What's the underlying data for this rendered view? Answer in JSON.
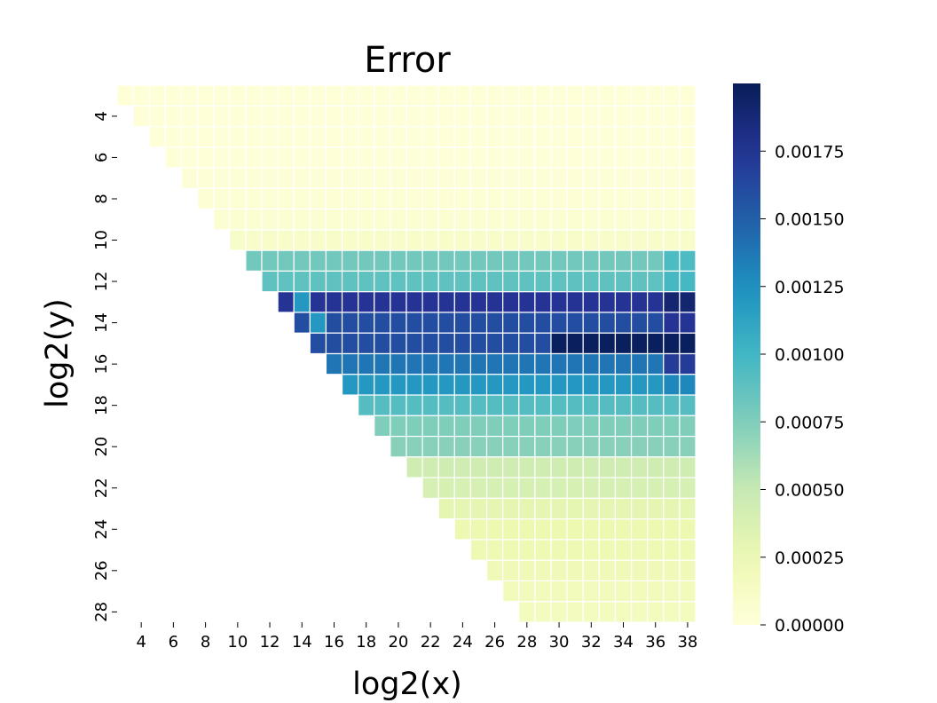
{
  "chart_data": {
    "type": "heatmap",
    "title": "Error",
    "xlabel": "log2(x)",
    "ylabel": "log2(y)",
    "x_range": [
      3,
      38
    ],
    "y_range": [
      3,
      28
    ],
    "x_ticks": [
      "4",
      "6",
      "8",
      "10",
      "12",
      "14",
      "16",
      "18",
      "20",
      "22",
      "24",
      "26",
      "28",
      "30",
      "32",
      "34",
      "36",
      "38"
    ],
    "y_ticks": [
      "4",
      "6",
      "8",
      "10",
      "12",
      "14",
      "16",
      "18",
      "20",
      "22",
      "24",
      "26",
      "28"
    ],
    "mask": "cells with x < y are empty (lower-left triangle blank)",
    "colormap": "YlGnBu",
    "colorbar": {
      "vmin": 0.0,
      "vmax": 0.002,
      "ticks": [
        "0.00000",
        "0.00025",
        "0.00050",
        "0.00075",
        "0.00100",
        "0.00125",
        "0.00150",
        "0.00175"
      ]
    },
    "grid_lines": "white",
    "row_values": [
      {
        "y": 3,
        "value": 1e-05
      },
      {
        "y": 4,
        "value": 1e-05
      },
      {
        "y": 5,
        "value": 1e-05
      },
      {
        "y": 6,
        "value": 1e-05
      },
      {
        "y": 7,
        "value": 2e-05
      },
      {
        "y": 8,
        "value": 3e-05
      },
      {
        "y": 9,
        "value": 5e-05
      },
      {
        "y": 10,
        "value": 0.0001
      },
      {
        "y": 11,
        "value": 0.0008,
        "right_end": 0.00095
      },
      {
        "y": 12,
        "value": 0.00088,
        "right_end": 0.00098
      },
      {
        "y": 13,
        "value": 0.00175,
        "start": 0.0012,
        "right_end": 0.0019
      },
      {
        "y": 14,
        "value": 0.0016,
        "start": 0.0012,
        "right_end": 0.00175
      },
      {
        "y": 15,
        "value": 0.0016,
        "peak": 0.00198,
        "peak_from_x": 30
      },
      {
        "y": 16,
        "value": 0.00138,
        "right_end": 0.0017
      },
      {
        "y": 17,
        "value": 0.0012,
        "right_end": 0.0013
      },
      {
        "y": 18,
        "value": 0.00092
      },
      {
        "y": 19,
        "value": 0.00075
      },
      {
        "y": 20,
        "value": 0.00072
      },
      {
        "y": 21,
        "value": 0.00045
      },
      {
        "y": 22,
        "value": 0.0004
      },
      {
        "y": 23,
        "value": 0.0003
      },
      {
        "y": 24,
        "value": 0.00025
      },
      {
        "y": 25,
        "value": 0.00023
      },
      {
        "y": 26,
        "value": 0.0002
      },
      {
        "y": 27,
        "value": 0.00018
      },
      {
        "y": 28,
        "value": 0.00016
      }
    ]
  }
}
